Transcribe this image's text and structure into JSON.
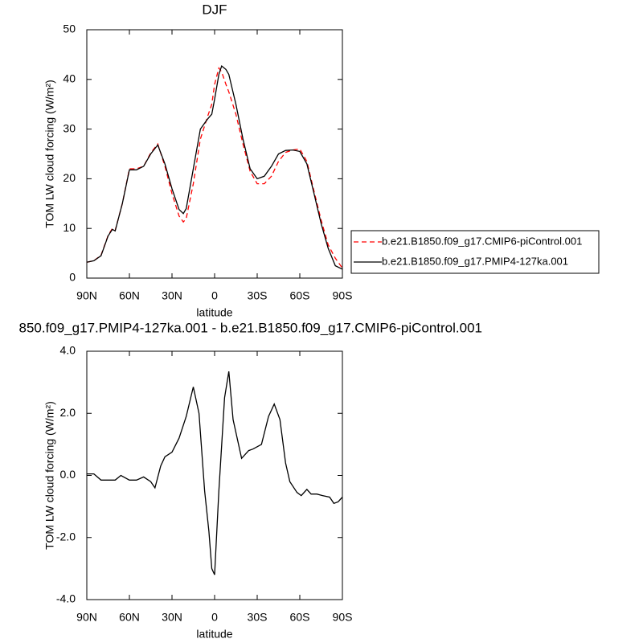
{
  "chart_data": [
    {
      "type": "line",
      "title": "DJF",
      "xlabel": "latitude",
      "ylabel": "TOM LW cloud forcing (W/m²)",
      "x": [
        90,
        85,
        80,
        75,
        72,
        70,
        65,
        60,
        55,
        50,
        45,
        40,
        35,
        30,
        25,
        22,
        20,
        15,
        10,
        5,
        2,
        0,
        -3,
        -5,
        -8,
        -10,
        -15,
        -20,
        -25,
        -30,
        -35,
        -40,
        -45,
        -50,
        -55,
        -60,
        -65,
        -70,
        -75,
        -80,
        -85,
        -90
      ],
      "series": [
        {
          "name": "b.e21.B1850.f09_g17.CMIP6-piControl.001",
          "color": "#ff0000",
          "dash": true,
          "values": [
            3.2,
            3.5,
            4.6,
            8.6,
            10,
            9.6,
            15,
            22,
            22,
            22.5,
            25.2,
            27,
            22.5,
            17,
            12.5,
            11.3,
            12,
            19,
            28,
            32.5,
            35,
            39,
            42.3,
            41.5,
            39,
            37.5,
            33,
            27,
            21.5,
            19,
            19,
            20.5,
            23.5,
            25.3,
            25.8,
            26,
            23.5,
            17.5,
            11.7,
            6.7,
            4,
            2.0
          ]
        },
        {
          "name": "b.e21.B1850.f09_g17.PMIP4-127ka.001",
          "color": "#000000",
          "dash": false,
          "values": [
            3.2,
            3.5,
            4.5,
            8.5,
            9.8,
            9.5,
            15,
            21.8,
            21.8,
            22.5,
            25,
            26.8,
            23,
            18,
            13.8,
            13,
            14,
            22,
            30,
            32,
            33,
            36,
            41,
            42.7,
            42,
            41,
            35,
            28,
            22,
            20,
            20.5,
            22.5,
            25,
            25.7,
            25.8,
            25.5,
            23,
            17,
            11,
            6,
            2.5,
            1.8
          ]
        }
      ],
      "xlim": [
        90,
        -90
      ],
      "xticks": [
        {
          "value": 90,
          "label": "90N"
        },
        {
          "value": 60,
          "label": "60N"
        },
        {
          "value": 30,
          "label": "30N"
        },
        0,
        {
          "value": -30,
          "label": "30S"
        },
        {
          "value": -60,
          "label": "60S"
        },
        {
          "value": -90,
          "label": "90S"
        }
      ],
      "ylim": [
        0,
        50
      ],
      "yticks": [
        0,
        10,
        20,
        30,
        40,
        50
      ],
      "legend": "right"
    },
    {
      "type": "line",
      "title": "850.f09_g17.PMIP4-127ka.001 - b.e21.B1850.f09_g17.CMIP6-piControl.001",
      "xlabel": "latitude",
      "ylabel": "TOM LW cloud forcing (W/m²)",
      "x": [
        90,
        85,
        80,
        75,
        70,
        66,
        60,
        55,
        50,
        45,
        42,
        38,
        35,
        30,
        25,
        20,
        15,
        11,
        7,
        4,
        2,
        0,
        -3,
        -7,
        -10,
        -13,
        -19,
        -24,
        -27,
        -33,
        -38,
        -42,
        -46,
        -50,
        -53,
        -58,
        -61,
        -65,
        -68,
        -72,
        -76,
        -81,
        -84,
        -87,
        -90
      ],
      "series": [
        {
          "color": "#000000",
          "dash": false,
          "values": [
            0.05,
            0.05,
            -0.15,
            -0.15,
            -0.15,
            0.0,
            -0.15,
            -0.15,
            -0.05,
            -0.2,
            -0.4,
            0.3,
            0.6,
            0.75,
            1.2,
            1.9,
            2.85,
            2.0,
            -0.5,
            -1.8,
            -3.0,
            -3.2,
            -0.5,
            2.5,
            3.35,
            1.8,
            0.55,
            0.8,
            0.85,
            1.0,
            1.9,
            2.3,
            1.8,
            0.4,
            -0.2,
            -0.55,
            -0.65,
            -0.45,
            -0.6,
            -0.6,
            -0.65,
            -0.7,
            -0.9,
            -0.85,
            -0.7
          ]
        }
      ],
      "xlim": [
        90,
        -90
      ],
      "xticks": [
        {
          "value": 90,
          "label": "90N"
        },
        {
          "value": 60,
          "label": "60N"
        },
        {
          "value": 30,
          "label": "30N"
        },
        0,
        {
          "value": -30,
          "label": "30S"
        },
        {
          "value": -60,
          "label": "60S"
        },
        {
          "value": -90,
          "label": "90S"
        }
      ],
      "ylim": [
        -4,
        4
      ],
      "yticks": [
        {
          "value": -4,
          "label": "-4.0"
        },
        {
          "value": -2,
          "label": "-2.0"
        },
        {
          "value": 0,
          "label": "0.0"
        },
        {
          "value": 2,
          "label": "2.0"
        },
        {
          "value": 4,
          "label": "4.0"
        }
      ]
    }
  ]
}
